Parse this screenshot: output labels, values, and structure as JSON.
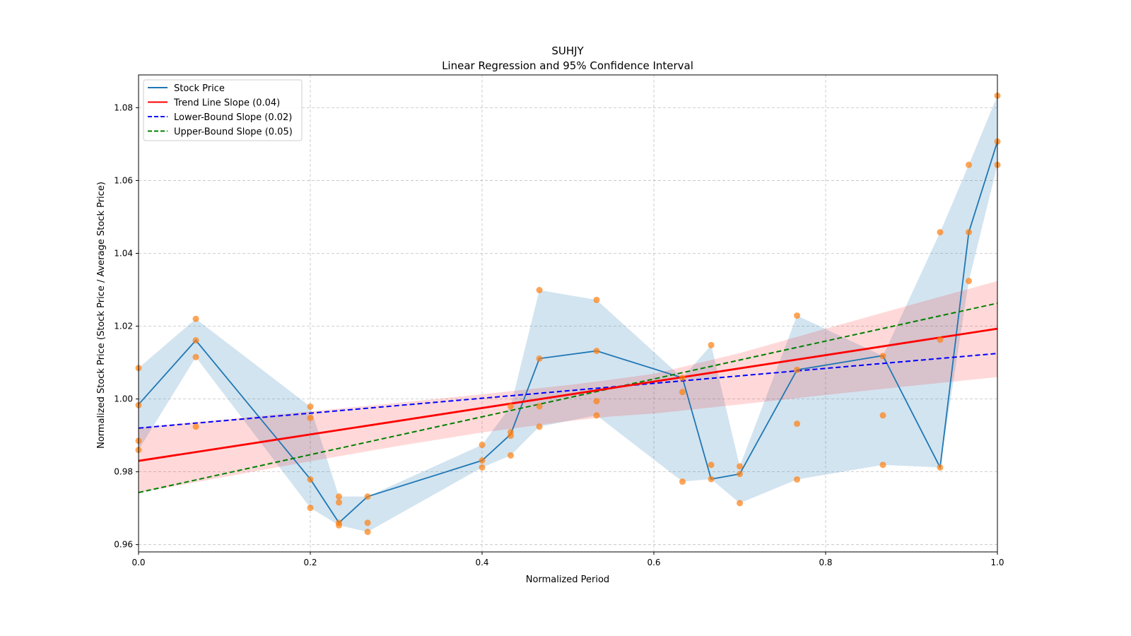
{
  "chart_data": {
    "type": "line",
    "title": "SUHJY",
    "subtitle": "Linear Regression and 95% Confidence Interval",
    "xlabel": "Normalized Period",
    "ylabel": "Normalized Stock Price (Stock Price / Average Stock Price)",
    "xlim": [
      0.0,
      1.0
    ],
    "ylim": [
      0.958,
      1.089
    ],
    "xticks": [
      0.0,
      0.2,
      0.4,
      0.6,
      0.8,
      1.0
    ],
    "xtick_labels": [
      "0.0",
      "0.2",
      "0.4",
      "0.6",
      "0.8",
      "1.0"
    ],
    "yticks": [
      0.96,
      0.98,
      1.0,
      1.02,
      1.04,
      1.06,
      1.08
    ],
    "ytick_labels": [
      "0.96",
      "0.98",
      "1.00",
      "1.02",
      "1.04",
      "1.06",
      "1.08"
    ],
    "grid": true,
    "legend_position": "top-left",
    "colors": {
      "stock": "#1f77b4",
      "stock_band": "#1f77b4",
      "scatter": "#ff7f0e",
      "trend": "#ff0000",
      "trend_band": "#ff0000",
      "lower": "#0000ff",
      "upper": "#008000"
    },
    "legend": [
      {
        "label": "Stock Price",
        "color": "#1f77b4",
        "style": "solid"
      },
      {
        "label": "Trend Line Slope (0.04)",
        "color": "#ff0000",
        "style": "solid"
      },
      {
        "label": "Lower-Bound Slope (0.02)",
        "color": "#0000ff",
        "style": "dashed"
      },
      {
        "label": "Upper-Bound Slope (0.05)",
        "color": "#008000",
        "style": "dashed"
      }
    ],
    "stock_price": {
      "x": [
        0.0,
        0.0667,
        0.2,
        0.2333,
        0.2667,
        0.4,
        0.4333,
        0.4667,
        0.5333,
        0.6333,
        0.6667,
        0.7,
        0.7667,
        0.8667,
        0.9333,
        0.9667,
        1.0
      ],
      "y": [
        0.9985,
        1.0161,
        0.978,
        0.966,
        0.9732,
        0.9831,
        0.9903,
        1.0111,
        1.0132,
        1.0058,
        0.978,
        0.9794,
        1.008,
        1.0119,
        0.9812,
        1.0458,
        1.0707
      ],
      "band_upper": [
        1.0085,
        1.022,
        0.9979,
        0.9732,
        0.9732,
        0.9874,
        0.998,
        1.0299,
        1.0272,
        1.0058,
        1.0148,
        0.9815,
        1.0229,
        1.0118,
        1.0458,
        1.0643,
        1.0833
      ],
      "band_lower": [
        0.986,
        1.0115,
        0.9701,
        0.9653,
        0.9635,
        0.9812,
        0.9845,
        0.9924,
        0.9955,
        0.9773,
        0.978,
        0.9714,
        0.9779,
        0.9819,
        0.9812,
        1.0324,
        1.0643
      ]
    },
    "scatter": {
      "x": [
        0.0,
        0.0,
        0.0,
        0.0,
        0.0667,
        0.0667,
        0.0667,
        0.0667,
        0.2,
        0.2,
        0.2,
        0.2,
        0.2333,
        0.2333,
        0.2333,
        0.2333,
        0.2667,
        0.2667,
        0.2667,
        0.4,
        0.4,
        0.4,
        0.4333,
        0.4333,
        0.4333,
        0.4333,
        0.4667,
        0.4667,
        0.4667,
        0.4667,
        0.5333,
        0.5333,
        0.5333,
        0.5333,
        0.6333,
        0.6333,
        0.6333,
        0.6667,
        0.6667,
        0.6667,
        0.7,
        0.7,
        0.7,
        0.7667,
        0.7667,
        0.7667,
        0.7667,
        0.8667,
        0.8667,
        0.8667,
        0.9333,
        0.9333,
        0.9333,
        0.9667,
        0.9667,
        0.9667,
        1.0,
        1.0,
        1.0
      ],
      "y": [
        1.0085,
        0.9983,
        0.9885,
        0.986,
        1.022,
        1.0161,
        1.0115,
        0.9924,
        0.9979,
        0.9948,
        0.9779,
        0.9701,
        0.9732,
        0.9716,
        0.966,
        0.9653,
        0.9732,
        0.966,
        0.9635,
        0.9874,
        0.9831,
        0.9812,
        0.998,
        0.9909,
        0.9899,
        0.9845,
        1.0299,
        1.0111,
        0.998,
        0.9924,
        1.0272,
        1.0132,
        0.9994,
        0.9955,
        1.0058,
        1.0019,
        0.9773,
        1.0148,
        0.9819,
        0.978,
        0.9815,
        0.9794,
        0.9714,
        1.0229,
        1.008,
        0.9932,
        0.9779,
        1.0118,
        0.9955,
        0.9819,
        1.0458,
        1.0163,
        0.9812,
        1.0643,
        1.0458,
        1.0324,
        1.0833,
        1.0707,
        1.0643
      ]
    },
    "trend_line": {
      "x": [
        0.0,
        1.0
      ],
      "y": [
        0.983,
        1.0193
      ]
    },
    "trend_band": {
      "x": [
        0.0,
        0.1,
        0.2,
        0.3,
        0.4,
        0.5,
        0.55,
        0.6,
        0.7,
        0.8,
        0.9,
        1.0
      ],
      "lower": [
        0.9742,
        0.9786,
        0.9829,
        0.987,
        0.9908,
        0.9939,
        0.9952,
        0.996,
        0.9985,
        1.0011,
        1.0036,
        1.006
      ],
      "upper": [
        0.9922,
        0.9944,
        0.9966,
        0.9989,
        1.0013,
        1.0038,
        1.0053,
        1.0069,
        1.0126,
        1.0193,
        1.0259,
        1.0324
      ]
    },
    "lower_bound_line": {
      "x": [
        0.0,
        1.0
      ],
      "y": [
        0.992,
        1.0125
      ]
    },
    "upper_bound_line": {
      "x": [
        0.0,
        1.0
      ],
      "y": [
        0.9743,
        1.0263
      ]
    }
  }
}
